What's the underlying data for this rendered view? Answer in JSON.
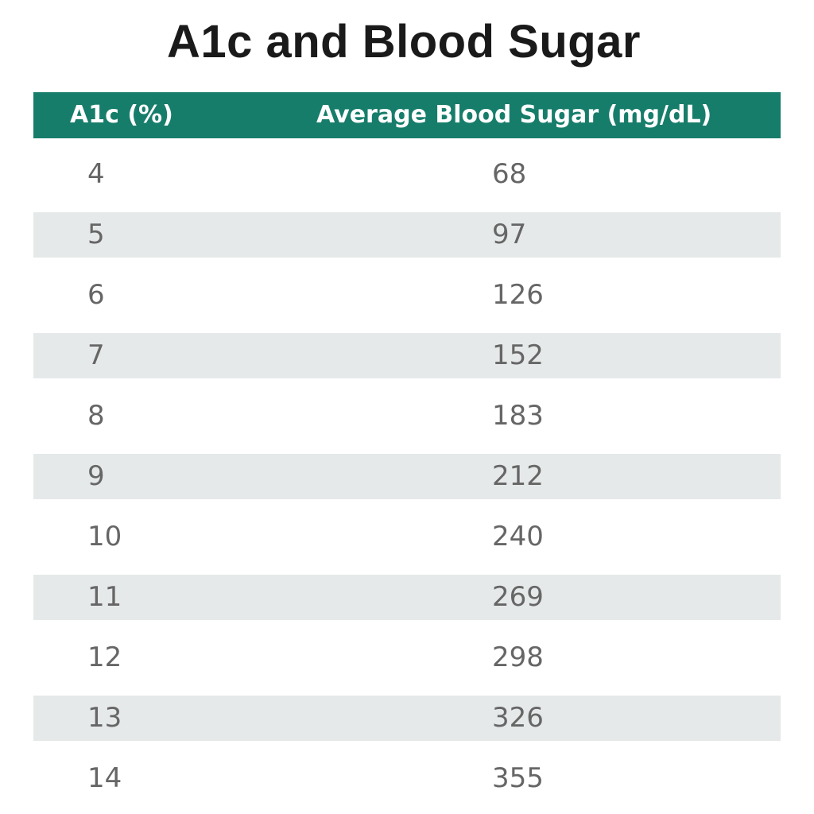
{
  "chart_data": {
    "type": "table",
    "title": "A1c and Blood Sugar",
    "columns": [
      "A1c (%)",
      "Average Blood Sugar (mg/dL)"
    ],
    "rows": [
      [
        "4",
        "68"
      ],
      [
        "5",
        "97"
      ],
      [
        "6",
        "126"
      ],
      [
        "7",
        "152"
      ],
      [
        "8",
        "183"
      ],
      [
        "9",
        "212"
      ],
      [
        "10",
        "240"
      ],
      [
        "11",
        "269"
      ],
      [
        "12",
        "298"
      ],
      [
        "13",
        "326"
      ],
      [
        "14",
        "355"
      ]
    ]
  },
  "colors": {
    "header_background": "#177d6b",
    "header_text": "#ffffff",
    "stripe_background": "#e6e9e9",
    "cell_text": "#666666",
    "title_text": "#1a1a1a"
  }
}
